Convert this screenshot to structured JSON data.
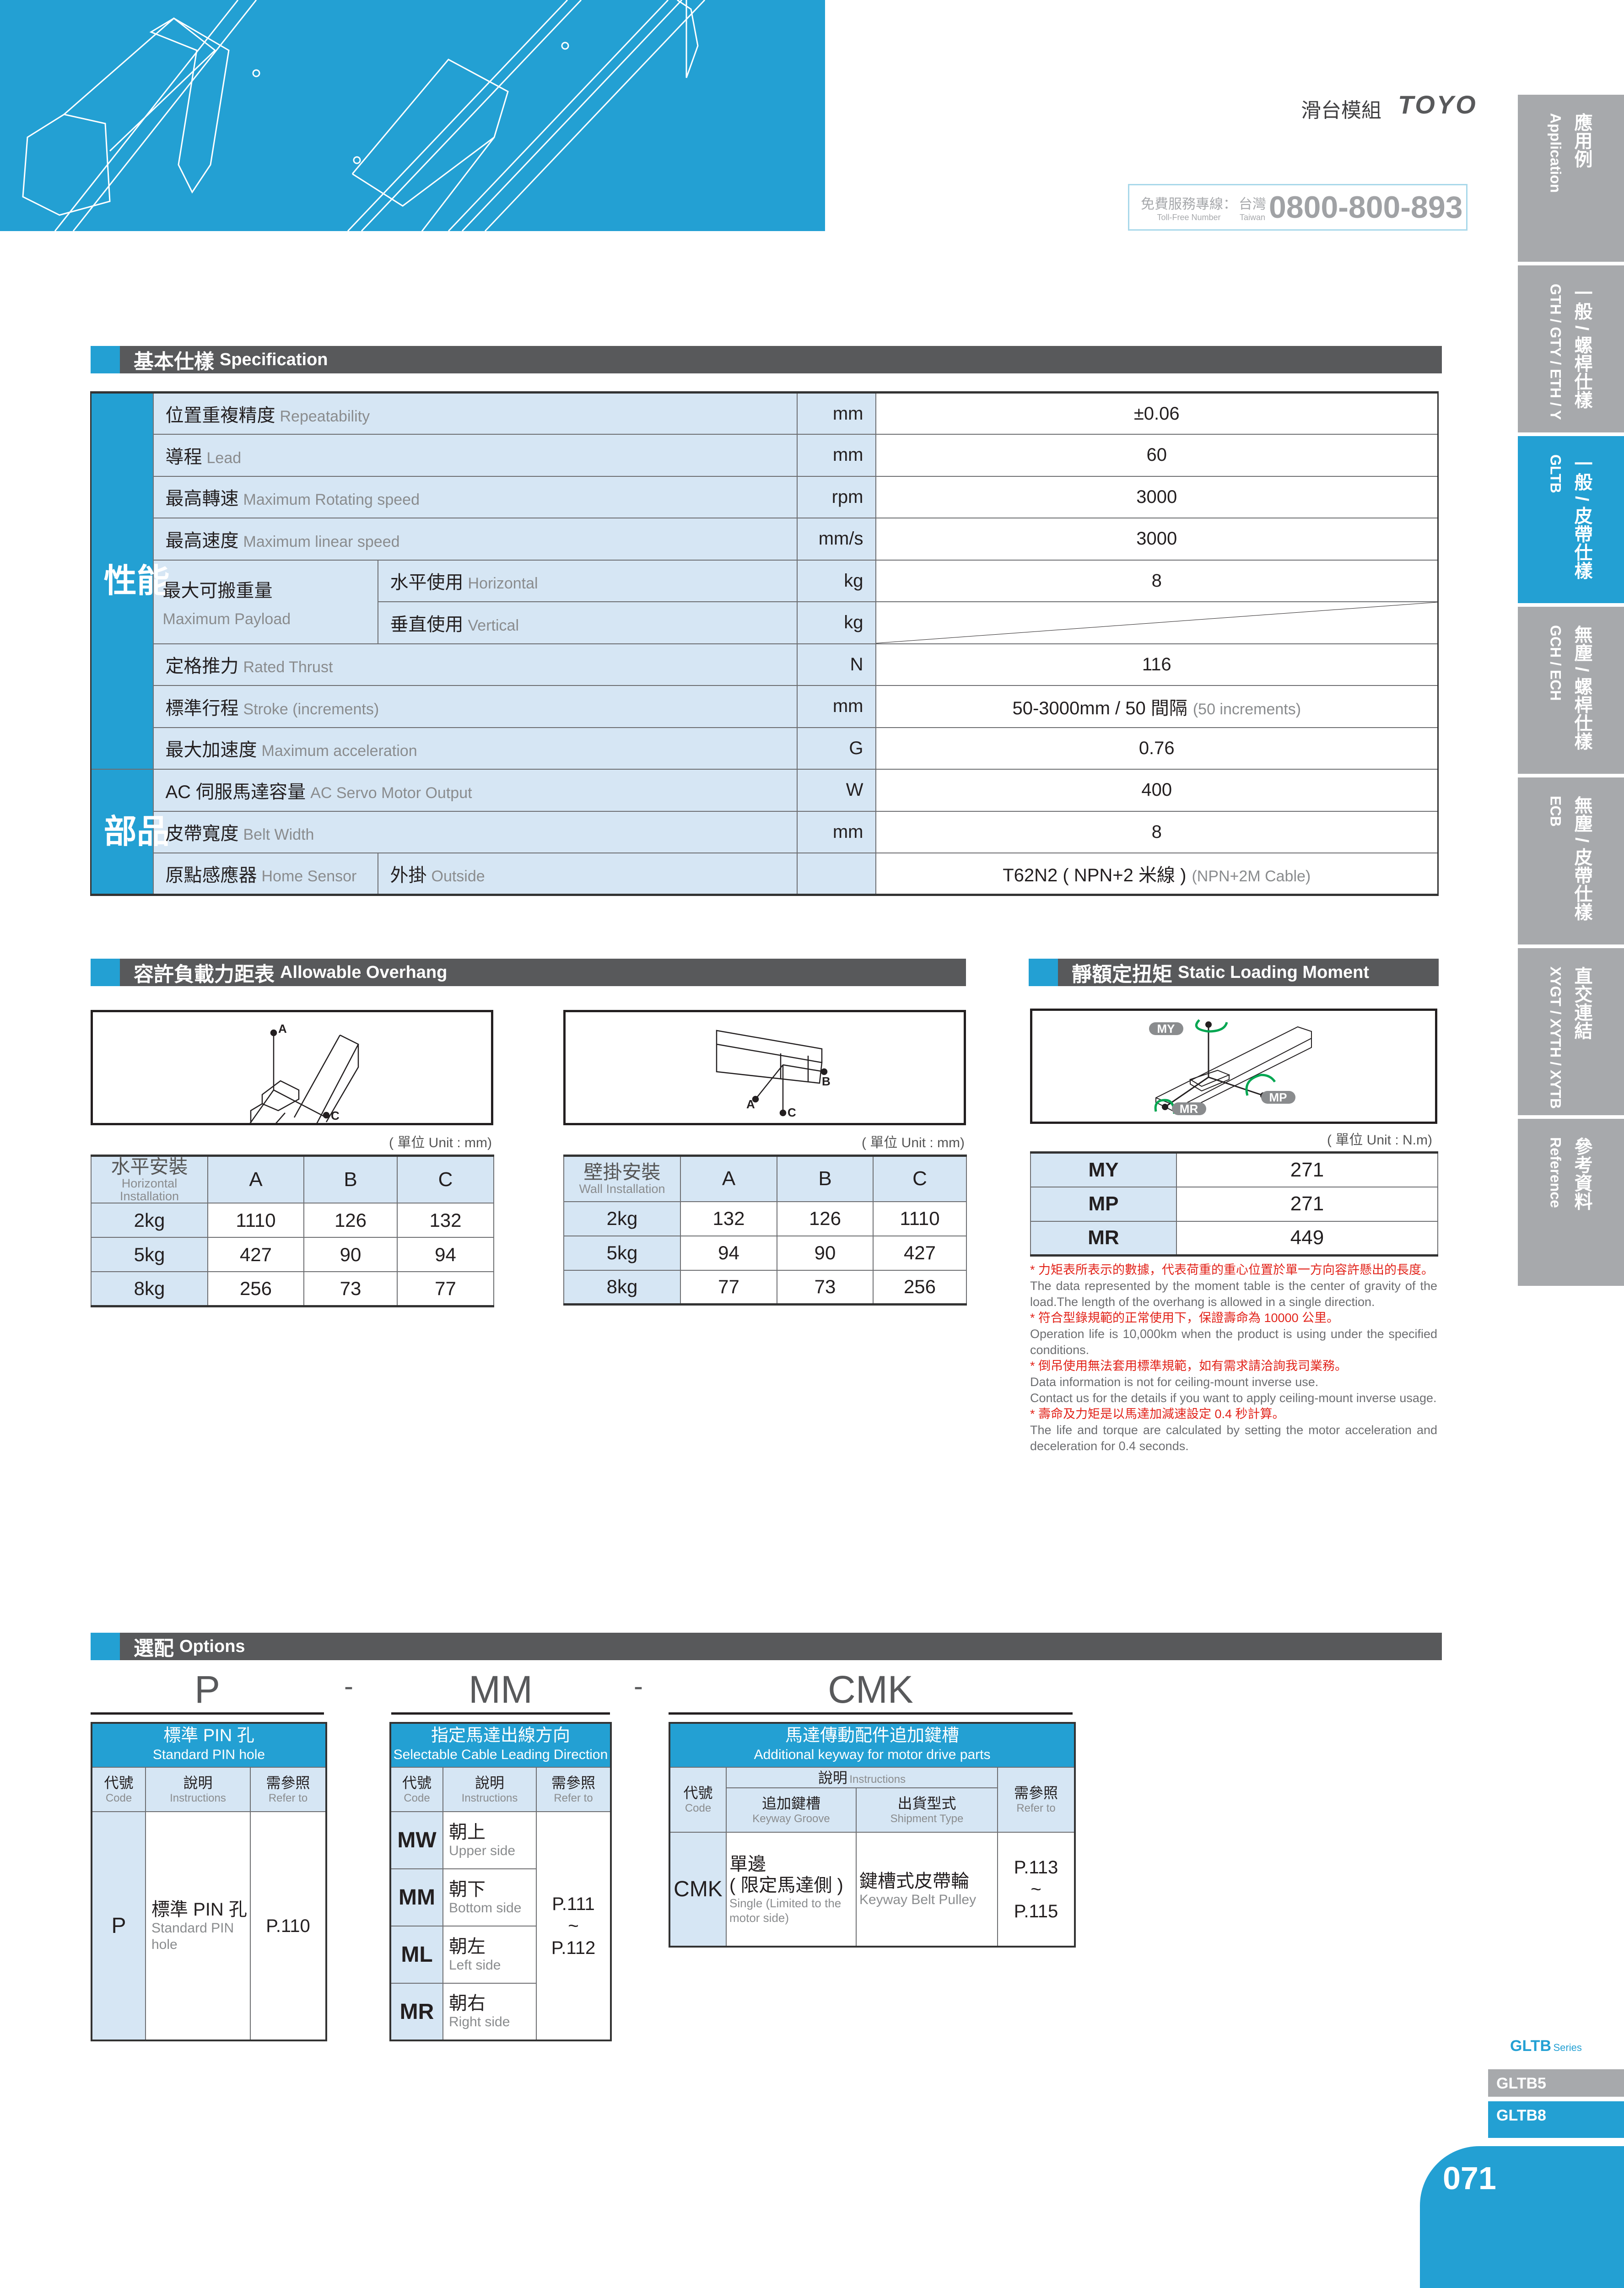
{
  "header": {
    "catalog_title": "滑台模組",
    "brand_logo": "TOYO",
    "hotline_zh": "免費服務專線：",
    "hotline_en": "Toll-Free Number",
    "region_zh": "台灣",
    "region_en": "Taiwan",
    "phone": "0800-800-893"
  },
  "colors": {
    "brand_blue": "#23a0d3",
    "section_bar": "#58595b",
    "tab_grey": "#a7a9ac",
    "cell_blue": "#d6e6f4",
    "note_red": "#e2231a"
  },
  "side_tabs": [
    {
      "zh": "應用例",
      "en": "Application"
    },
    {
      "zh": "一般 / 螺桿仕樣",
      "en": "GTH / GTY / ETH / Y"
    },
    {
      "zh": "一般 / 皮帶仕樣",
      "en": "GLTB",
      "active": true
    },
    {
      "zh": "無塵 / 螺桿仕樣",
      "en": "GCH / ECH"
    },
    {
      "zh": "無塵 / 皮帶仕樣",
      "en": "ECB"
    },
    {
      "zh": "直交連結",
      "en": "XYGT / XYTH / XYTB"
    },
    {
      "zh": "參考資料",
      "en": "Reference"
    }
  ],
  "spec": {
    "title_zh": "基本仕樣",
    "title_en": "Specification",
    "group_performance": "性能",
    "group_parts": "部品",
    "rows": [
      {
        "zh": "位置重複精度",
        "en": "Repeatability",
        "unit": "mm",
        "value": "±0.06"
      },
      {
        "zh": "導程",
        "en": "Lead",
        "unit": "mm",
        "value": "60"
      },
      {
        "zh": "最高轉速",
        "en": "Maximum Rotating speed",
        "unit": "rpm",
        "value": "3000"
      },
      {
        "zh": "最高速度",
        "en": "Maximum linear speed",
        "unit": "mm/s",
        "value": "3000"
      },
      {
        "zh": "最大可搬重量",
        "en": "Maximum Payload",
        "sub": [
          {
            "zh": "水平使用",
            "en": "Horizontal",
            "unit": "kg",
            "value": "8"
          },
          {
            "zh": "垂直使用",
            "en": "Vertical",
            "unit": "kg",
            "value": ""
          }
        ]
      },
      {
        "zh": "定格推力",
        "en": "Rated Thrust",
        "unit": "N",
        "value": "116"
      },
      {
        "zh": "標準行程",
        "en": "Stroke (increments)",
        "unit": "mm",
        "value": "50-3000mm / 50 間隔",
        "value_en": "(50 increments)"
      },
      {
        "zh": "最大加速度",
        "en": "Maximum acceleration",
        "unit": "G",
        "value": "0.76"
      },
      {
        "zh": "AC 伺服馬達容量",
        "en": "AC Servo Motor Output",
        "unit": "W",
        "value": "400"
      },
      {
        "zh": "皮帶寬度",
        "en": "Belt Width",
        "unit": "mm",
        "value": "8"
      },
      {
        "zh": "原點感應器",
        "en": "Home Sensor",
        "sub_zh": "外掛",
        "sub_en": "Outside",
        "unit": "",
        "value": "T62N2 ( NPN+2 米線 )",
        "value_en": "(NPN+2M Cable)"
      }
    ]
  },
  "overhang": {
    "title_zh": "容許負載力距表",
    "title_en": "Allowable Overhang",
    "unit": "( 單位 Unit : mm)",
    "axis_labels": [
      "A",
      "B",
      "C"
    ],
    "horizontal": {
      "zh": "水平安裝",
      "en": "Horizontal Installation",
      "columns": [
        "A",
        "B",
        "C"
      ],
      "rows": [
        {
          "load": "2kg",
          "values": [
            "1110",
            "126",
            "132"
          ]
        },
        {
          "load": "5kg",
          "values": [
            "427",
            "90",
            "94"
          ]
        },
        {
          "load": "8kg",
          "values": [
            "256",
            "73",
            "77"
          ]
        }
      ]
    },
    "wall": {
      "zh": "壁掛安裝",
      "en": "Wall Installation",
      "columns": [
        "A",
        "B",
        "C"
      ],
      "rows": [
        {
          "load": "2kg",
          "values": [
            "132",
            "126",
            "1110"
          ]
        },
        {
          "load": "5kg",
          "values": [
            "94",
            "90",
            "427"
          ]
        },
        {
          "load": "8kg",
          "values": [
            "77",
            "73",
            "256"
          ]
        }
      ]
    }
  },
  "static_moment": {
    "title_zh": "靜額定扭矩",
    "title_en": "Static Loading Moment",
    "unit": "( 單位 Unit : N.m)",
    "rows": [
      {
        "key": "MY",
        "value": "271"
      },
      {
        "key": "MP",
        "value": "271"
      },
      {
        "key": "MR",
        "value": "449"
      }
    ],
    "notes": [
      {
        "zh": "* 力矩表所表示的數據，代表荷重的重心位置於單一方向容許懸出的長度。",
        "en": "The data represented by the moment table is the center of gravity of the load.The length of the overhang is allowed in a single direction."
      },
      {
        "zh": "* 符合型錄規範的正常使用下，保證壽命為 10000 公里。",
        "en": "Operation life is 10,000km when the product is using under the specified conditions."
      },
      {
        "zh": "* 倒吊使用無法套用標準規範，如有需求請洽詢我司業務。",
        "en": "Data information is not for ceiling-mount inverse use.",
        "en2": "Contact us for the details if you want to apply ceiling-mount inverse usage."
      },
      {
        "zh": "* 壽命及力矩是以馬達加減速設定 0.4 秒計算。",
        "en": "The life and torque are calculated by setting the motor acceleration and deceleration for 0.4 seconds."
      }
    ]
  },
  "options": {
    "title_zh": "選配",
    "title_en": "Options",
    "separator": "-",
    "header": {
      "code_zh": "代號",
      "code_en": "Code",
      "ins_zh": "說明",
      "ins_en": "Instructions",
      "ref_zh": "需參照",
      "ref_en": "Refer to"
    },
    "pin": {
      "code": "P",
      "title_zh": "標準 PIN 孔",
      "title_en": "Standard PIN hole",
      "row": {
        "code": "P",
        "zh": "標準 PIN 孔",
        "en": "Standard PIN hole",
        "ref": "P.110"
      }
    },
    "cable": {
      "code": "MM",
      "title_zh": "指定馬達出線方向",
      "title_en": "Selectable Cable Leading Direction",
      "rows": [
        {
          "code": "MW",
          "zh": "朝上",
          "en": "Upper side"
        },
        {
          "code": "MM",
          "zh": "朝下",
          "en": "Bottom side"
        },
        {
          "code": "ML",
          "zh": "朝左",
          "en": "Left side"
        },
        {
          "code": "MR",
          "zh": "朝右",
          "en": "Right side"
        }
      ],
      "ref_from": "P.111",
      "ref_sep": "~",
      "ref_to": "P.112"
    },
    "keyway": {
      "code": "CMK",
      "title_zh": "馬達傳動配件追加鍵槽",
      "title_en": "Additional keyway for motor drive parts",
      "groove_zh": "追加鍵槽",
      "groove_en": "Keyway Groove",
      "ship_zh": "出貨型式",
      "ship_en": "Shipment Type",
      "row": {
        "code": "CMK",
        "groove_zh": "單邊",
        "groove_zh2": "( 限定馬達側 )",
        "groove_en": "Single (Limited to the motor side)",
        "ship_zh": "鍵槽式皮帶輪",
        "ship_en": "Keyway Belt Pulley",
        "ref_from": "P.113",
        "ref_sep": "~",
        "ref_to": "P.115"
      }
    }
  },
  "series": {
    "name": "GLTB",
    "suffix": "Series",
    "models": [
      {
        "label": "GLTB5",
        "active": false
      },
      {
        "label": "GLTB8",
        "active": true
      }
    ]
  },
  "page_number": "071"
}
